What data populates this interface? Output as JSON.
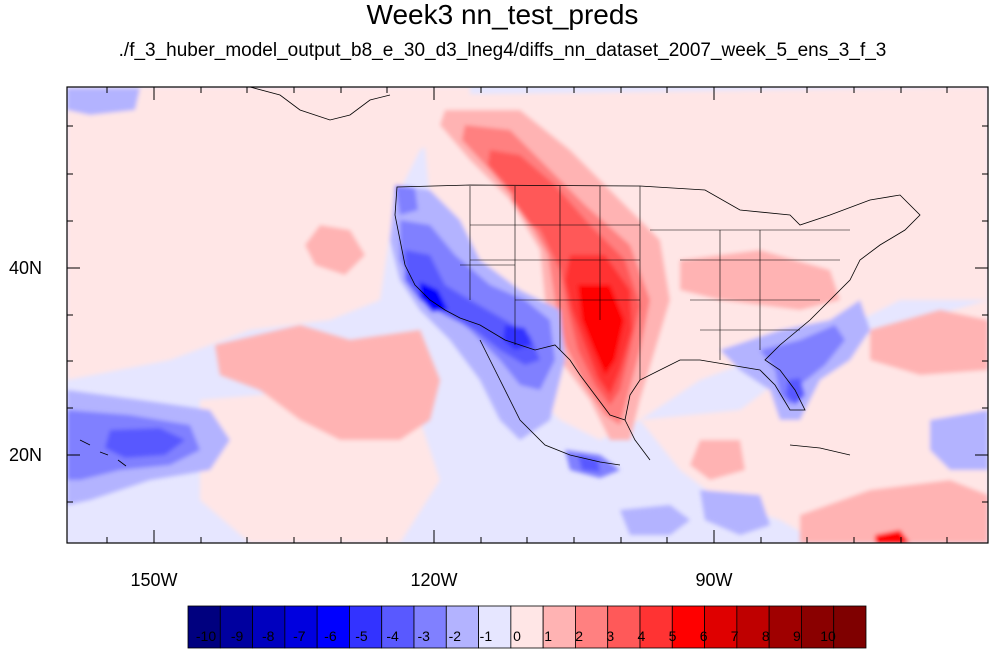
{
  "title": "Week3 nn_test_preds",
  "subtitle": "./f_3_huber_model_output_b8_e_30_d3_lneg4/diffs_nn_dataset_2007_week_5_ens_3_f_3",
  "map": {
    "lon_range": [
      -160,
      -63
    ],
    "lat_range": [
      10,
      58
    ],
    "lat_ticks": [
      {
        "label": "40N",
        "lat": 40
      },
      {
        "label": "20N",
        "lat": 20
      }
    ],
    "lon_ticks": [
      {
        "label": "150W",
        "lon": -150
      },
      {
        "label": "120W",
        "lon": -120
      },
      {
        "label": "90W",
        "lon": -90
      }
    ]
  },
  "colorbar": {
    "labels": [
      "-10",
      "-9",
      "-8",
      "-7",
      "-6",
      "-5",
      "-4",
      "-3",
      "-2",
      "-1",
      "0",
      "1",
      "2",
      "3",
      "4",
      "5",
      "6",
      "7",
      "8",
      "9",
      "10"
    ],
    "colors": [
      "#00007f",
      "#00009f",
      "#0000bf",
      "#0000df",
      "#0000ff",
      "#3333ff",
      "#5959ff",
      "#8080ff",
      "#b3b3ff",
      "#e6e6ff",
      "#ffe6e6",
      "#ffb3b3",
      "#ff8080",
      "#ff5959",
      "#ff3333",
      "#ff0000",
      "#df0000",
      "#bf0000",
      "#9f0000",
      "#8a0000",
      "#7f0000"
    ]
  },
  "colors": {
    "background_field": "#e6e6ff",
    "light_red": "#ffe6e6"
  }
}
